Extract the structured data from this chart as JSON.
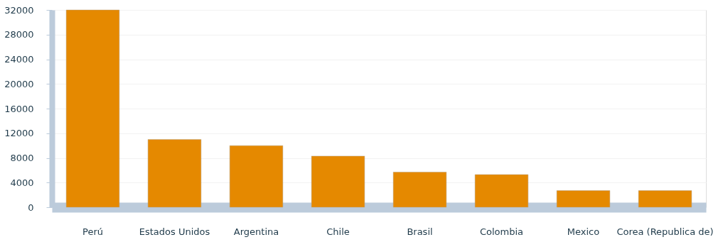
{
  "chart_data": {
    "type": "bar",
    "categories": [
      "Perú",
      "Estados Unidos",
      "Argentina",
      "Chile",
      "Brasil",
      "Colombia",
      "Mexico",
      "Corea (Republica de)"
    ],
    "values": [
      32000,
      11000,
      10000,
      8300,
      5700,
      5300,
      2700,
      2700
    ],
    "color": "#e58900",
    "ylim": [
      0,
      32000
    ],
    "yticks": [
      0,
      4000,
      8000,
      12000,
      16000,
      20000,
      24000,
      28000,
      32000
    ],
    "grid": "y"
  }
}
